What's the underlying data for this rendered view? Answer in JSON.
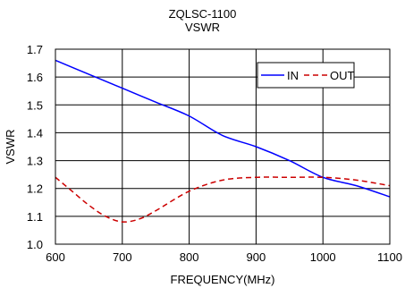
{
  "chart_data": {
    "type": "line",
    "title": "ZQLSC-1100",
    "subtitle": "VSWR",
    "xlabel": "FREQUENCY(MHz)",
    "ylabel": "VSWR",
    "xlim": [
      600,
      1100
    ],
    "ylim": [
      1.0,
      1.7
    ],
    "xticks": [
      600,
      700,
      800,
      900,
      1000,
      1100
    ],
    "yticks": [
      1.0,
      1.1,
      1.2,
      1.3,
      1.4,
      1.5,
      1.6,
      1.7
    ],
    "xtick_labels": [
      "600",
      "700",
      "800",
      "900",
      "1000",
      "1100"
    ],
    "ytick_labels": [
      "1.0",
      "1.1",
      "1.2",
      "1.3",
      "1.4",
      "1.5",
      "1.6",
      "1.7"
    ],
    "grid": true,
    "legend_position": "top-right",
    "series": [
      {
        "name": "IN",
        "color": "#0000FF",
        "dash": "solid",
        "x": [
          600,
          650,
          700,
          750,
          800,
          850,
          900,
          950,
          1000,
          1050,
          1100
        ],
        "y": [
          1.66,
          1.61,
          1.56,
          1.51,
          1.46,
          1.39,
          1.35,
          1.3,
          1.24,
          1.21,
          1.17
        ]
      },
      {
        "name": "OUT",
        "color": "#CC0000",
        "dash": "dashed",
        "x": [
          600,
          625,
          650,
          675,
          700,
          725,
          750,
          800,
          850,
          900,
          950,
          1000,
          1050,
          1100
        ],
        "y": [
          1.24,
          1.19,
          1.14,
          1.1,
          1.08,
          1.09,
          1.12,
          1.19,
          1.23,
          1.24,
          1.24,
          1.24,
          1.23,
          1.21
        ]
      }
    ]
  }
}
